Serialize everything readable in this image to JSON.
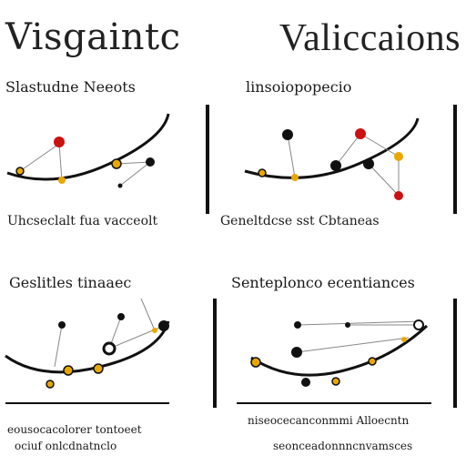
{
  "title": {
    "left": "Visgaintc",
    "right": "Valiccaions"
  },
  "panels": [
    {
      "label": "Slastudne Neeots",
      "caption": "Uhcseclalt fua vacceolt",
      "caption2": ""
    },
    {
      "label": "linsoiopopecio",
      "caption": "Geneltdcse sst Cbtaneas",
      "caption2": ""
    },
    {
      "label": "Geslitles tinaaec",
      "caption": "eousocacolorer tontoeet",
      "caption2": "ociuf onlcdnatnclo"
    },
    {
      "label": "Senteplonco ecentiances",
      "caption": "niseocecanconmmi Alloecntn",
      "caption2": "seonceadonnncnvamsces"
    }
  ],
  "colors": {
    "line": "#111111",
    "accent_red": "#cc1111",
    "accent_yellow": "#e8a800"
  }
}
